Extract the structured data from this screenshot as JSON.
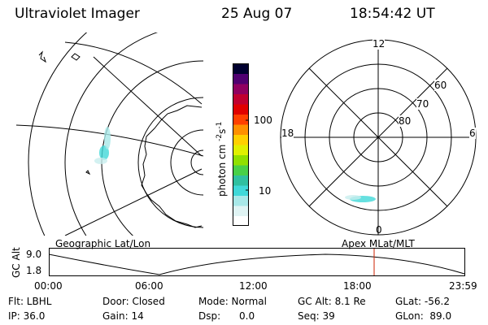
{
  "header": {
    "title": "Ultraviolet Imager",
    "date": "25 Aug 07",
    "time": "18:54:42 UT"
  },
  "colorbar": {
    "label": "photon cm",
    "label_sup1": "-2",
    "label_mid": "s",
    "label_sup2": "-1",
    "tick_100": "100",
    "tick_10": "10",
    "colors": [
      "#ffffff",
      "#e0f4f4",
      "#a8e8e8",
      "#40d8d8",
      "#30c0a0",
      "#48d048",
      "#90e000",
      "#e0f000",
      "#ffd000",
      "#ff9000",
      "#ff4000",
      "#e00000",
      "#c00030",
      "#900060",
      "#500070",
      "#000030"
    ]
  },
  "polar": {
    "labels": {
      "top": "12",
      "bottom": "0",
      "left": "18",
      "right": "6"
    },
    "rings": [
      "60",
      "70",
      "80"
    ]
  },
  "track": {
    "left_title": "Geographic Lat/Lon",
    "right_title": "Apex MLat/MLT",
    "axis_label": "GC Alt",
    "ytick_top": "9.0",
    "ytick_bottom": "1.8",
    "xticks": [
      "00:00",
      "06:00",
      "12:00",
      "18:00",
      "23:59"
    ],
    "marker_color": "#cc2200"
  },
  "info": {
    "row1": {
      "flt": "Flt: LBHL",
      "door": "Door: Closed",
      "mode": "Mode: Normal",
      "gcalt": "GC Alt: 8.1 Re",
      "glat": "GLat: -56.2"
    },
    "row2": {
      "ip": "IP: 36.0",
      "gain": "Gain: 14",
      "dsp": "Dsp:      0.0",
      "seq": "Seq: 39",
      "glon": "GLon:  89.0"
    }
  }
}
